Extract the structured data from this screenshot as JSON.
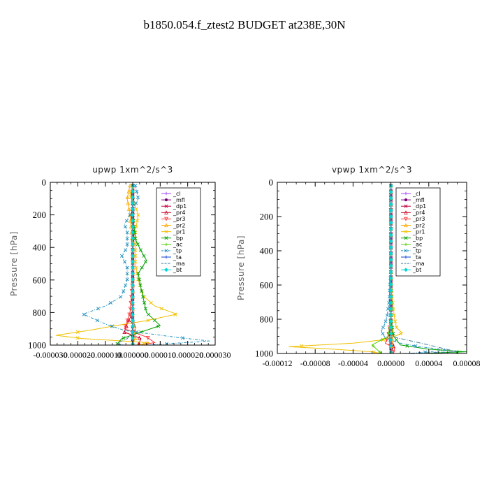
{
  "page": {
    "title": "b1850.054.f_ztest2  BUDGET at238E,30N"
  },
  "chart_data": [
    {
      "type": "line",
      "title": "upwp   1xm^2/s^3",
      "ylabel": "Pressure [hPa]",
      "xlabel": "",
      "xlim": [
        -3e-05,
        3e-05
      ],
      "ylim": [
        1000,
        0
      ],
      "x_ticks": [
        -3e-05,
        -2e-05,
        -1e-05,
        0,
        1e-05,
        2e-05,
        3e-05
      ],
      "x_tick_labels": [
        "-0.000030",
        "-0.000020",
        "-0.000010",
        "0.000000",
        "0.000010",
        "0.000020",
        "0.000030"
      ],
      "y_ticks": [
        0,
        200,
        400,
        600,
        800,
        1000
      ],
      "y_tick_labels": [
        "0",
        "200",
        "400",
        "600",
        "800",
        "1000"
      ],
      "legend_position": "top-right",
      "series": [
        {
          "name": "_cl",
          "color": "#a040ff",
          "y": [
            20,
            200,
            400,
            600,
            800,
            900,
            1000
          ],
          "values": [
            0,
            0,
            0,
            0,
            0,
            0,
            0
          ]
        },
        {
          "name": "_mfl",
          "color": "#7a007a",
          "y": [
            20,
            200,
            400,
            600,
            800,
            1000
          ],
          "values": [
            0,
            0,
            0,
            0,
            0,
            0
          ]
        },
        {
          "name": "_dp1",
          "color": "#c00040",
          "y": [
            20,
            200,
            400,
            600,
            700,
            800,
            900,
            950,
            1000
          ],
          "values": [
            0,
            0,
            0,
            0,
            0,
            0,
            0,
            0,
            0
          ]
        },
        {
          "name": "_pr4",
          "color": "#cc0022",
          "y": [
            20,
            600,
            800,
            870,
            920,
            960,
            1000
          ],
          "values": [
            0,
            0,
            0,
            -2e-06,
            -3e-06,
            3e-06,
            2e-06
          ]
        },
        {
          "name": "_pr3",
          "color": "#ff3030",
          "y": [
            20,
            600,
            800,
            850,
            900,
            950,
            985,
            1000
          ],
          "values": [
            0,
            0,
            -1e-06,
            -2e-06,
            -3e-06,
            5e-06,
            8e-06,
            2e-06
          ]
        },
        {
          "name": "_pr2",
          "color": "#ffaa00",
          "y": [
            20,
            100,
            200,
            400,
            600,
            800,
            850,
            900,
            950,
            1000
          ],
          "values": [
            -1e-06,
            -2e-06,
            -1e-06,
            0,
            0,
            0,
            0,
            1e-06,
            1e-06,
            0
          ]
        },
        {
          "name": "_pr1",
          "color": "#f0c000",
          "y": [
            20,
            80,
            150,
            200,
            300,
            400,
            500,
            600,
            700,
            760,
            810,
            850,
            880,
            910,
            940,
            960,
            985,
            1000
          ],
          "values": [
            0,
            -1e-06,
            1e-06,
            2e-06,
            1e-06,
            1e-06,
            1e-06,
            2e-06,
            4e-06,
            8e-06,
            1.6e-05,
            5e-06,
            -6e-06,
            -1.6e-05,
            -2.8e-05,
            -1.8e-05,
            6e-06,
            2e-06
          ]
        },
        {
          "name": "_bp",
          "color": "#00a000",
          "y": [
            20,
            200,
            350,
            420,
            480,
            560,
            650,
            800,
            880,
            920,
            960,
            1000
          ],
          "values": [
            0,
            0,
            1e-06,
            3e-06,
            5e-06,
            2e-06,
            3e-06,
            5e-06,
            1e-05,
            3e-06,
            -4e-06,
            -6e-06
          ]
        },
        {
          "name": "_ac",
          "color": "#50d000",
          "y": [
            20,
            200,
            400,
            600,
            800,
            900,
            1000
          ],
          "values": [
            0,
            0,
            0,
            0,
            0,
            0,
            0
          ]
        },
        {
          "name": "_tp",
          "color": "#2090c0",
          "y": [
            20,
            100,
            200,
            260,
            300,
            400,
            450,
            520,
            600,
            700,
            760,
            810,
            870,
            910,
            950,
            975,
            1000
          ],
          "values": [
            1e-06,
            2e-06,
            -1e-06,
            -3e-06,
            -2e-06,
            -2e-06,
            -4e-06,
            -2e-06,
            -2e-06,
            -4e-06,
            -1e-05,
            -1.8e-05,
            -1e-05,
            -3e-06,
            1.5e-05,
            2.8e-05,
            5e-06
          ]
        },
        {
          "name": "_ta",
          "color": "#1040d0",
          "y": [
            20,
            200,
            400,
            600,
            800,
            1000
          ],
          "values": [
            0,
            0,
            0,
            0,
            0,
            0
          ]
        },
        {
          "name": "_ma",
          "color": "#4080a0",
          "y": [
            20,
            200,
            400,
            600,
            800,
            900,
            960,
            990,
            1000
          ],
          "values": [
            0,
            0,
            0,
            0,
            0,
            1e-06,
            -2e-06,
            -6e-06,
            -3e-06
          ]
        },
        {
          "name": "_bt",
          "color": "#00d8d8",
          "y": [
            20,
            200,
            400,
            600,
            800,
            1000
          ],
          "values": [
            0,
            0,
            0,
            0,
            0,
            0
          ]
        }
      ]
    },
    {
      "type": "line",
      "title": "vpwp   1xm^2/s^3",
      "ylabel": "Pressure [hPa]",
      "xlabel": "",
      "xlim": [
        -0.00012,
        8e-05
      ],
      "ylim": [
        1000,
        0
      ],
      "x_ticks": [
        -0.00012,
        -8e-05,
        -4e-05,
        0,
        4e-05,
        8e-05
      ],
      "x_tick_labels": [
        "-0.00012",
        "-0.00008",
        "-0.00004",
        "0.00000",
        "0.00004",
        "0.00008"
      ],
      "y_ticks": [
        0,
        200,
        400,
        600,
        800,
        1000
      ],
      "y_tick_labels": [
        "0",
        "200",
        "400",
        "600",
        "800",
        "1000"
      ],
      "legend_position": "top-right",
      "series": [
        {
          "name": "_cl",
          "color": "#a040ff",
          "y": [
            20,
            200,
            400,
            600,
            800,
            1000
          ],
          "values": [
            0,
            0,
            0,
            0,
            0,
            0
          ]
        },
        {
          "name": "_mfl",
          "color": "#7a007a",
          "y": [
            20,
            200,
            400,
            600,
            800,
            1000
          ],
          "values": [
            0,
            0,
            0,
            0,
            0,
            0
          ]
        },
        {
          "name": "_dp1",
          "color": "#c00040",
          "y": [
            20,
            200,
            400,
            600,
            800,
            900,
            950,
            1000
          ],
          "values": [
            0,
            0,
            0,
            0,
            0,
            0,
            0,
            0
          ]
        },
        {
          "name": "_pr4",
          "color": "#cc0022",
          "y": [
            20,
            800,
            900,
            950,
            1000
          ],
          "values": [
            0,
            0,
            -2e-06,
            3e-06,
            0
          ]
        },
        {
          "name": "_pr3",
          "color": "#ff3030",
          "y": [
            20,
            800,
            900,
            940,
            970,
            1000
          ],
          "values": [
            0,
            0,
            -3e-06,
            -6e-06,
            4e-06,
            2e-06
          ]
        },
        {
          "name": "_pr2",
          "color": "#ffaa00",
          "y": [
            20,
            400,
            800,
            900,
            1000
          ],
          "values": [
            0,
            0,
            0,
            2e-06,
            0
          ]
        },
        {
          "name": "_pr1",
          "color": "#f0c000",
          "y": [
            20,
            600,
            760,
            800,
            850,
            880,
            900,
            920,
            940,
            960,
            975,
            990,
            1000
          ],
          "values": [
            0,
            0,
            3e-06,
            4e-06,
            6e-06,
            1.2e-05,
            4e-06,
            -8e-06,
            -4e-05,
            -0.000108,
            -6e-05,
            -2e-05,
            -1e-05
          ]
        },
        {
          "name": "_bp",
          "color": "#00a000",
          "y": [
            20,
            600,
            800,
            900,
            950,
            975,
            990,
            1000
          ],
          "values": [
            0,
            0,
            0,
            3e-06,
            1e-05,
            4e-05,
            8e-05,
            3e-05
          ]
        },
        {
          "name": "_ac",
          "color": "#50d000",
          "y": [
            20,
            600,
            800,
            900,
            950,
            1000
          ],
          "values": [
            0,
            0,
            0,
            -3e-06,
            -2e-05,
            -1e-05
          ]
        },
        {
          "name": "_tp",
          "color": "#2090c0",
          "y": [
            20,
            500,
            700,
            780,
            820,
            870,
            910,
            940,
            960,
            980,
            1000
          ],
          "values": [
            0,
            0,
            -2e-06,
            -4e-06,
            -6e-06,
            -1e-05,
            -6e-06,
            1e-05,
            3e-05,
            6e-05,
            2e-05
          ]
        },
        {
          "name": "_ta",
          "color": "#1040d0",
          "y": [
            20,
            600,
            800,
            1000
          ],
          "values": [
            0,
            0,
            0,
            0
          ]
        },
        {
          "name": "_ma",
          "color": "#4080a0",
          "y": [
            20,
            600,
            800,
            900,
            950,
            990,
            1000
          ],
          "values": [
            0,
            0,
            0,
            0,
            4e-05,
            7e-05,
            1e-05
          ]
        },
        {
          "name": "_bt",
          "color": "#00d8d8",
          "y": [
            20,
            600,
            800,
            1000
          ],
          "values": [
            0,
            0,
            0,
            0
          ]
        }
      ]
    }
  ]
}
